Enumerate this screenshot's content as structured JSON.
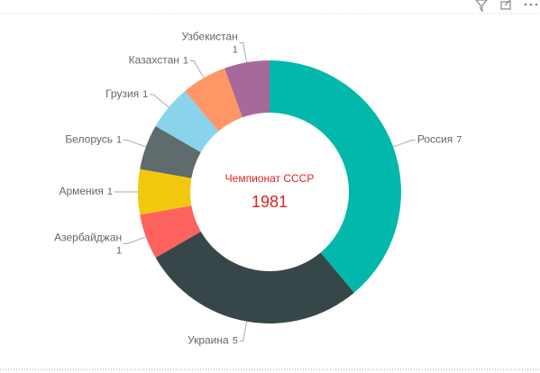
{
  "chart_data": {
    "type": "donut",
    "title": "Чемпионат СССР",
    "subtitle": "1981",
    "categories": [
      "Россия",
      "Украина",
      "Азербайджан",
      "Армения",
      "Белорусь",
      "Грузия",
      "Казахстан",
      "Узбекистан"
    ],
    "values": [
      7,
      5,
      1,
      1,
      1,
      1,
      1,
      1
    ],
    "colors": [
      "#01B8AA",
      "#374649",
      "#FD625E",
      "#F2C80F",
      "#5F6B6D",
      "#8AD4EB",
      "#FE9666",
      "#A66999"
    ]
  }
}
